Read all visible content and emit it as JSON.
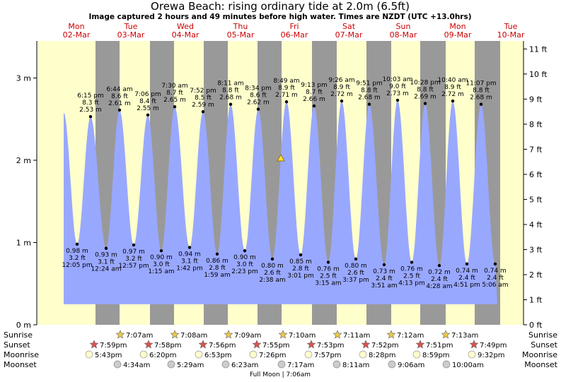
{
  "title": "Orewa Beach: rising  ordinary tide at 2.0m (6.5ft)",
  "subtitle": "Image captured 2 hours and 49 minutes before high water. Times are NZDT (UTC +13.0hrs)",
  "days": [
    {
      "dow": "Mon",
      "date": "02-Mar"
    },
    {
      "dow": "Tue",
      "date": "03-Mar"
    },
    {
      "dow": "Wed",
      "date": "04-Mar"
    },
    {
      "dow": "Thu",
      "date": "05-Mar"
    },
    {
      "dow": "Fri",
      "date": "06-Mar"
    },
    {
      "dow": "Sat",
      "date": "07-Mar"
    },
    {
      "dow": "Sun",
      "date": "08-Mar"
    },
    {
      "dow": "Mon",
      "date": "09-Mar"
    },
    {
      "dow": "Tue",
      "date": "10-Mar"
    }
  ],
  "row_labels": {
    "sunrise": "Sunrise",
    "sunset": "Sunset",
    "moonrise": "Moonrise",
    "moonset": "Moonset"
  },
  "sunrise": [
    "7:07am",
    "7:08am",
    "7:09am",
    "7:10am",
    "7:11am",
    "7:12am",
    "7:13am"
  ],
  "sunset": [
    "7:59pm",
    "7:58pm",
    "7:56pm",
    "7:55pm",
    "7:53pm",
    "7:52pm",
    "7:51pm",
    "7:49pm"
  ],
  "moonrise": [
    "5:43pm",
    "6:20pm",
    "6:53pm",
    "7:26pm",
    "7:57pm",
    "8:28pm",
    "8:59pm",
    "9:32pm"
  ],
  "moonset": [
    "4:34am",
    "5:29am",
    "6:23am",
    "7:17am",
    "8:11am",
    "9:06am",
    "10:00am"
  ],
  "moon_phase_note": "Full Moon | 7:06am",
  "colors": {
    "day": "#ffffcc",
    "night": "#999999",
    "water": "#99a8ff",
    "sun": "#e8c84a",
    "sunset": "#d9534f",
    "moon": "#ffffcc",
    "moonset": "#cccccc",
    "weekend": "#cc0000"
  },
  "chart_data": {
    "type": "area",
    "y_left_unit": "m",
    "y_left_ticks": [
      "0 m",
      "1 m",
      "2 m",
      "3 m"
    ],
    "y_right_ticks": [
      "0 ft",
      "1 ft",
      "2 ft",
      "3 ft",
      "4 ft",
      "5 ft",
      "6 ft",
      "7 ft",
      "8 ft",
      "9 ft",
      "10 ft",
      "11 ft"
    ],
    "ylim_m": [
      0,
      3.45
    ],
    "current": {
      "height_m": 2.0,
      "height_ft": 6.5,
      "status": "rising"
    },
    "high_tides": [
      {
        "time": "6:15 pm",
        "ft": "8.3 ft",
        "m": "2.53 m",
        "value_m": 2.53
      },
      {
        "time": "6:44 am",
        "ft": "8.6 ft",
        "m": "2.61 m",
        "value_m": 2.61
      },
      {
        "time": "7:06 pm",
        "ft": "8.4 ft",
        "m": "2.55 m",
        "value_m": 2.55
      },
      {
        "time": "7:30 am",
        "ft": "8.7 ft",
        "m": "2.65 m",
        "value_m": 2.65
      },
      {
        "time": "7:52 pm",
        "ft": "8.5 ft",
        "m": "2.59 m",
        "value_m": 2.59
      },
      {
        "time": "8:11 am",
        "ft": "8.8 ft",
        "m": "2.68 m",
        "value_m": 2.68
      },
      {
        "time": "8:34 pm",
        "ft": "8.6 ft",
        "m": "2.62 m",
        "value_m": 2.62
      },
      {
        "time": "8:49 am",
        "ft": "8.9 ft",
        "m": "2.71 m",
        "value_m": 2.71
      },
      {
        "time": "9:13 pm",
        "ft": "8.7 ft",
        "m": "2.66 m",
        "value_m": 2.66
      },
      {
        "time": "9:26 am",
        "ft": "8.9 ft",
        "m": "2.72 m",
        "value_m": 2.72
      },
      {
        "time": "9:51 pm",
        "ft": "8.8 ft",
        "m": "2.68 m",
        "value_m": 2.68
      },
      {
        "time": "10:03 am",
        "ft": "9.0 ft",
        "m": "2.73 m",
        "value_m": 2.73
      },
      {
        "time": "10:28 pm",
        "ft": "8.8 ft",
        "m": "2.69 m",
        "value_m": 2.69
      },
      {
        "time": "10:40 am",
        "ft": "8.9 ft",
        "m": "2.72 m",
        "value_m": 2.72
      },
      {
        "time": "11:07 pm",
        "ft": "8.8 ft",
        "m": "2.68 m",
        "value_m": 2.68
      }
    ],
    "low_tides": [
      {
        "time": "12:05 pm",
        "ft": "3.2 ft",
        "m": "0.98 m",
        "value_m": 0.98
      },
      {
        "time": "12:24 am",
        "ft": "3.1 ft",
        "m": "0.93 m",
        "value_m": 0.93
      },
      {
        "time": "12:57 pm",
        "ft": "3.2 ft",
        "m": "0.97 m",
        "value_m": 0.97
      },
      {
        "time": "1:15 am",
        "ft": "3.0 ft",
        "m": "0.90 m",
        "value_m": 0.9
      },
      {
        "time": "1:42 pm",
        "ft": "3.1 ft",
        "m": "0.94 m",
        "value_m": 0.94
      },
      {
        "time": "1:59 am",
        "ft": "2.8 ft",
        "m": "0.86 m",
        "value_m": 0.86
      },
      {
        "time": "2:23 pm",
        "ft": "3.0 ft",
        "m": "0.90 m",
        "value_m": 0.9
      },
      {
        "time": "2:38 am",
        "ft": "2.6 ft",
        "m": "0.80 m",
        "value_m": 0.8
      },
      {
        "time": "3:01 pm",
        "ft": "2.8 ft",
        "m": "0.85 m",
        "value_m": 0.85
      },
      {
        "time": "3:15 am",
        "ft": "2.5 ft",
        "m": "0.76 m",
        "value_m": 0.76
      },
      {
        "time": "3:37 pm",
        "ft": "2.6 ft",
        "m": "0.80 m",
        "value_m": 0.8
      },
      {
        "time": "3:51 am",
        "ft": "2.4 ft",
        "m": "0.73 m",
        "value_m": 0.73
      },
      {
        "time": "4:13 pm",
        "ft": "2.5 ft",
        "m": "0.76 m",
        "value_m": 0.76
      },
      {
        "time": "4:28 am",
        "ft": "2.4 ft",
        "m": "0.72 m",
        "value_m": 0.72
      },
      {
        "time": "4:51 pm",
        "ft": "2.4 ft",
        "m": "0.74 m",
        "value_m": 0.74
      },
      {
        "time": "5:06 am",
        "ft": "2.4 ft",
        "m": "0.74 m",
        "value_m": 0.74
      }
    ]
  }
}
